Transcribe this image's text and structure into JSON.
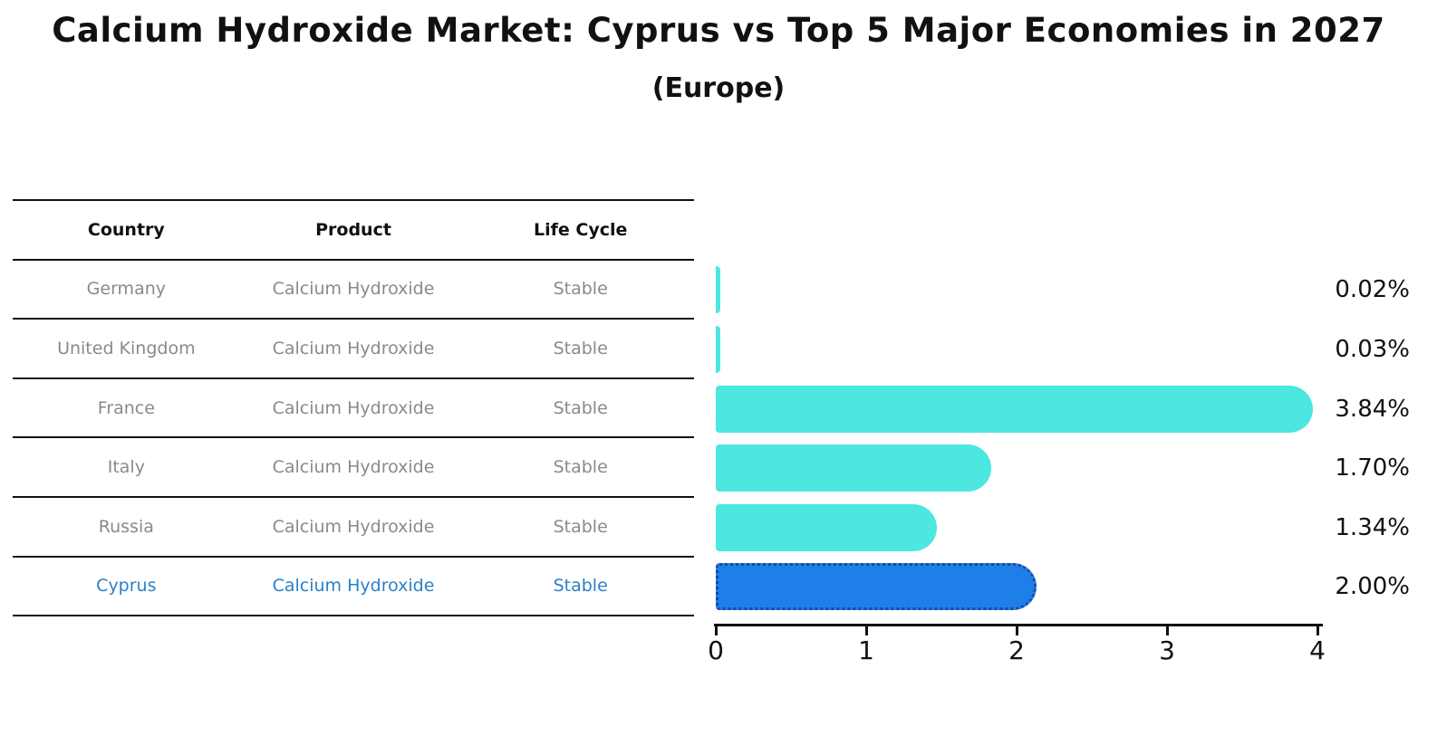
{
  "title": "Calcium Hydroxide Market: Cyprus vs Top 5 Major Economies in 2027",
  "subtitle": "(Europe)",
  "table": {
    "headers": [
      "Country",
      "Product",
      "Life Cycle"
    ],
    "rows": [
      {
        "country": "Germany",
        "product": "Calcium Hydroxide",
        "life_cycle": "Stable",
        "highlight": false
      },
      {
        "country": "United Kingdom",
        "product": "Calcium Hydroxide",
        "life_cycle": "Stable",
        "highlight": false
      },
      {
        "country": "France",
        "product": "Calcium Hydroxide",
        "life_cycle": "Stable",
        "highlight": false
      },
      {
        "country": "Italy",
        "product": "Calcium Hydroxide",
        "life_cycle": "Stable",
        "highlight": false
      },
      {
        "country": "Russia",
        "product": "Calcium Hydroxide",
        "life_cycle": "Stable",
        "highlight": false
      },
      {
        "country": "Cyprus",
        "product": "Calcium Hydroxide",
        "life_cycle": "Stable",
        "highlight": true
      }
    ]
  },
  "chart_data": {
    "type": "bar",
    "orientation": "horizontal",
    "categories": [
      "Germany",
      "United Kingdom",
      "France",
      "Italy",
      "Russia",
      "Cyprus"
    ],
    "values": [
      0.02,
      0.03,
      3.84,
      1.7,
      1.34,
      2.0
    ],
    "value_labels": [
      "0.02%",
      "0.03%",
      "3.84%",
      "1.70%",
      "1.34%",
      "2.00%"
    ],
    "x_ticks": [
      "0",
      "1",
      "2",
      "3",
      "4"
    ],
    "xlim": [
      0,
      4
    ],
    "grid": false,
    "legend": false,
    "highlight_index": 5,
    "colors": {
      "bar": "#4BE7E0",
      "highlight_bar": "#1E7FE8",
      "highlight_border": "#1C48A8",
      "axis": "#111111",
      "value_label": "#111111"
    }
  },
  "colors": {
    "background": "#ffffff",
    "title_text": "#111111",
    "table_header_text": "#111111",
    "table_row_text": "#8a8a8a",
    "highlight_row_text": "#2a80c8",
    "table_line": "#111111"
  }
}
